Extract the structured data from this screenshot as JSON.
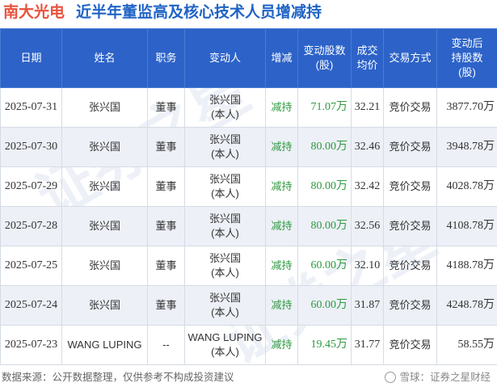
{
  "header": {
    "stock_name": "南大光电",
    "subtitle": "近半年董监高及核心技术人员增减持"
  },
  "table": {
    "columns": [
      "日期",
      "姓名",
      "职务",
      "变动人",
      "增减",
      "变动股数\n(股)",
      "成交\n均价",
      "交易方式",
      "变动后\n持股数\n(股)"
    ],
    "rows": [
      {
        "date": "2025-07-31",
        "name": "张兴国",
        "position": "董事",
        "changer": "张兴国\n(本人)",
        "direction": "减持",
        "shares": "71.07万",
        "avg_price": "32.21",
        "method": "竞价交易",
        "holding_after": "3877.70万"
      },
      {
        "date": "2025-07-30",
        "name": "张兴国",
        "position": "董事",
        "changer": "张兴国\n(本人)",
        "direction": "减持",
        "shares": "80.00万",
        "avg_price": "32.46",
        "method": "竞价交易",
        "holding_after": "3948.78万"
      },
      {
        "date": "2025-07-29",
        "name": "张兴国",
        "position": "董事",
        "changer": "张兴国\n(本人)",
        "direction": "减持",
        "shares": "80.00万",
        "avg_price": "32.42",
        "method": "竞价交易",
        "holding_after": "4028.78万"
      },
      {
        "date": "2025-07-28",
        "name": "张兴国",
        "position": "董事",
        "changer": "张兴国\n(本人)",
        "direction": "减持",
        "shares": "80.00万",
        "avg_price": "32.56",
        "method": "竞价交易",
        "holding_after": "4108.78万"
      },
      {
        "date": "2025-07-25",
        "name": "张兴国",
        "position": "董事",
        "changer": "张兴国\n(本人)",
        "direction": "减持",
        "shares": "60.00万",
        "avg_price": "32.10",
        "method": "竞价交易",
        "holding_after": "4188.78万"
      },
      {
        "date": "2025-07-24",
        "name": "张兴国",
        "position": "董事",
        "changer": "张兴国\n(本人)",
        "direction": "减持",
        "shares": "60.00万",
        "avg_price": "31.87",
        "method": "竞价交易",
        "holding_after": "4248.78万"
      },
      {
        "date": "2025-07-23",
        "name": "WANG LUPING",
        "position": "--",
        "changer": "WANG LUPING\n(本人)",
        "direction": "减持",
        "shares": "19.45万",
        "avg_price": "31.77",
        "method": "竞价交易",
        "holding_after": "58.55万"
      }
    ]
  },
  "footer": {
    "source": "数据来源：公开数据整理，仅供参考不构成投资建议",
    "brand": "雪球：证券之星财经"
  },
  "watermark": {
    "text": "证券之星"
  },
  "colors": {
    "header_bg": "#2d63c8",
    "stock_name": "#e8533c",
    "subtitle": "#1f63c6",
    "reduce": "#2e9a3f",
    "row_alt": "#edf0f7"
  }
}
